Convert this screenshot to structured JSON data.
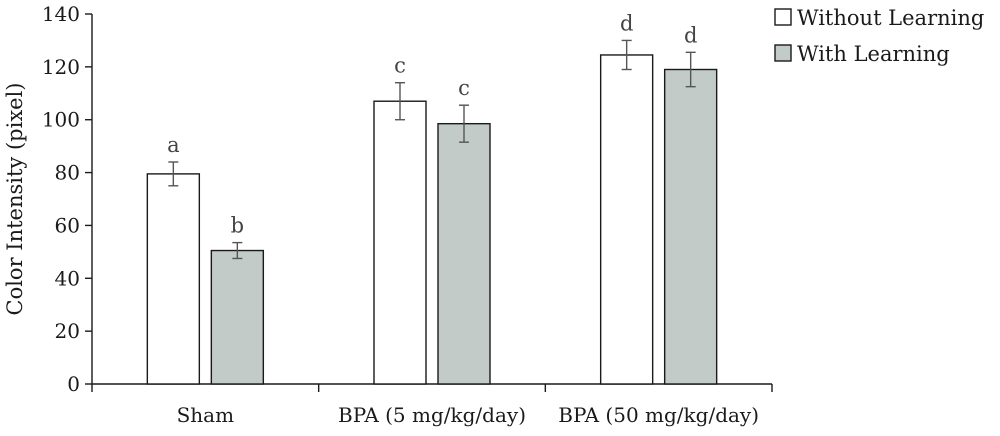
{
  "chart_data": {
    "type": "bar",
    "categories": [
      "Sham",
      "BPA (5 mg/kg/day)",
      "BPA (50 mg/kg/day)"
    ],
    "series": [
      {
        "name": "Without Learning",
        "values": [
          79.5,
          107,
          124.5
        ],
        "errors": [
          4.5,
          7,
          5.5
        ],
        "labels": [
          "a",
          "c",
          "d"
        ],
        "color": "#ffffff"
      },
      {
        "name": "With Learning",
        "values": [
          50.5,
          98.5,
          119
        ],
        "errors": [
          3,
          7,
          6.5
        ],
        "labels": [
          "b",
          "c",
          "d"
        ],
        "color": "#c2cbc8"
      }
    ],
    "ylabel": "Color Intensity (pixel)",
    "xlabel": "",
    "ylim": [
      0,
      140
    ],
    "yticks": [
      0,
      20,
      40,
      60,
      80,
      100,
      120,
      140
    ],
    "legend_position": "top-right",
    "grid": false
  }
}
